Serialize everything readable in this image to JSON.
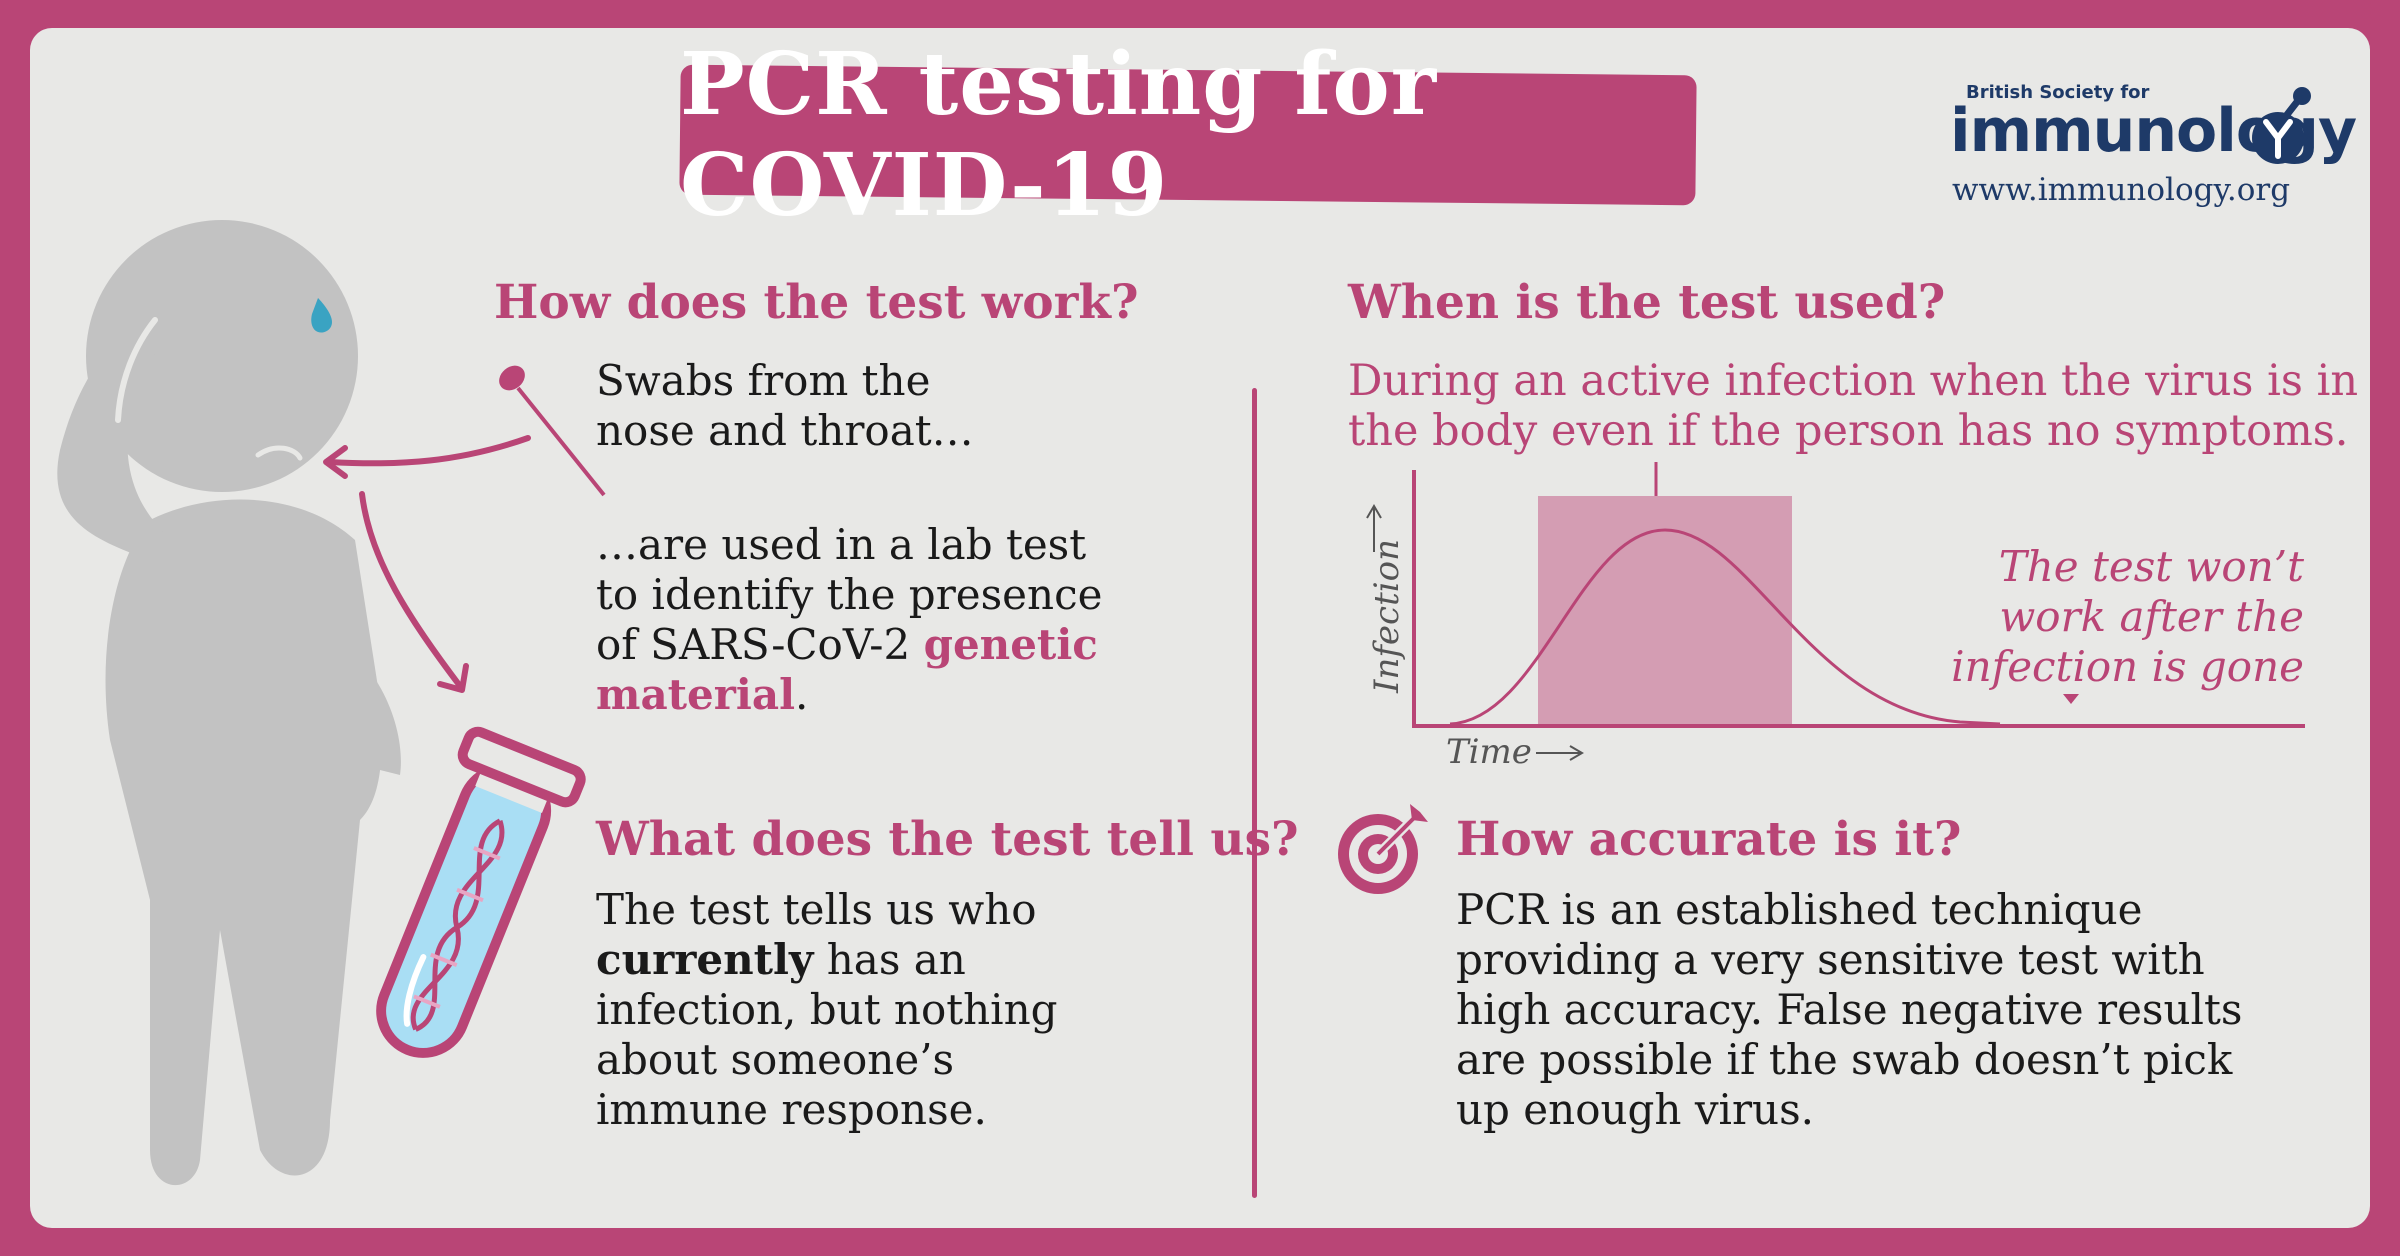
{
  "title": "PCR testing for COVID-19",
  "logo": {
    "small": "British Society for",
    "big": "immunology",
    "url": "www.immunology.org"
  },
  "how_it_works": {
    "heading": "How does the test work?",
    "swab_line1": "Swabs from the",
    "swab_line2": "nose and throat…",
    "lab_line1": "…are used in a lab test",
    "lab_line2": "to identify the presence",
    "lab_line3_a": "of SARS-CoV-2 ",
    "lab_line3_b": "genetic",
    "lab_line4_a": "material",
    "lab_line4_b": "."
  },
  "tell_us": {
    "heading": "What does the test tell us?",
    "line1": "The test tells us who",
    "line2_a": "currently",
    "line2_b": " has an",
    "line3": "infection, but nothing",
    "line4": "about someone’s",
    "line5": "immune response."
  },
  "when_used": {
    "heading": "When is the test used?",
    "line1": "During an active infection when the virus is in",
    "line2": "the body even if the person has no symptoms."
  },
  "chart": {
    "ylabel": "Infection",
    "xlabel": "Time",
    "note_line1": "The test won’t",
    "note_line2": "work after the",
    "note_line3": "infection is gone"
  },
  "accuracy": {
    "heading": "How accurate is it?",
    "line1": "PCR is an established technique",
    "line2": "providing a very sensitive test with",
    "line3": "high accuracy. False negative results",
    "line4": "are possible if the swab doesn’t pick",
    "line5": "up enough virus."
  },
  "colors": {
    "brand_pink": "#b94576",
    "panel_bg": "#e8e8e6",
    "figure_grey": "#c2c2c2",
    "logo_navy": "#1e3a68",
    "tube_blue": "#a9def4"
  }
}
